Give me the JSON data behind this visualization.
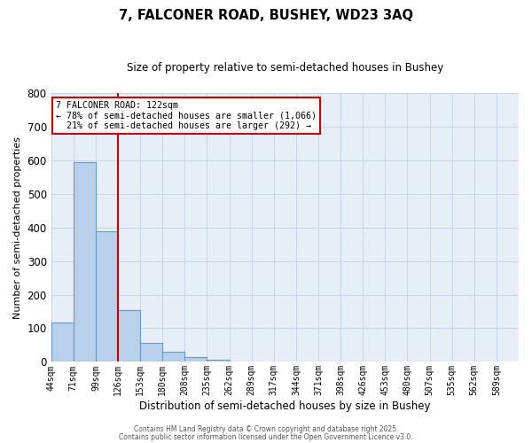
{
  "title": "7, FALCONER ROAD, BUSHEY, WD23 3AQ",
  "subtitle": "Size of property relative to semi-detached houses in Bushey",
  "xlabel": "Distribution of semi-detached houses by size in Bushey",
  "ylabel": "Number of semi-detached properties",
  "bin_labels": [
    "44sqm",
    "71sqm",
    "99sqm",
    "126sqm",
    "153sqm",
    "180sqm",
    "208sqm",
    "235sqm",
    "262sqm",
    "289sqm",
    "317sqm",
    "344sqm",
    "371sqm",
    "398sqm",
    "426sqm",
    "453sqm",
    "480sqm",
    "507sqm",
    "535sqm",
    "562sqm",
    "589sqm"
  ],
  "bar_values": [
    116,
    595,
    390,
    155,
    57,
    30,
    14,
    7,
    0,
    0,
    0,
    0,
    0,
    0,
    0,
    0,
    0,
    0,
    0,
    0
  ],
  "bar_color": "#b8d0ea",
  "bar_edge_color": "#6699cc",
  "red_line_x": 3,
  "red_line_color": "#cc0000",
  "annotation_line1": "7 FALCONER ROAD: 122sqm",
  "annotation_line2": "← 78% of semi-detached houses are smaller (1,066)",
  "annotation_line3": "  21% of semi-detached houses are larger (292) →",
  "annotation_box_color": "#cc0000",
  "ylim": [
    0,
    800
  ],
  "yticks": [
    0,
    100,
    200,
    300,
    400,
    500,
    600,
    700,
    800
  ],
  "footer1": "Contains HM Land Registry data © Crown copyright and database right 2025.",
  "footer2": "Contains public sector information licensed under the Open Government Licence v3.0.",
  "bg_color": "#ffffff",
  "plot_bg_color": "#e8eef8",
  "grid_color": "#c8d4e8"
}
